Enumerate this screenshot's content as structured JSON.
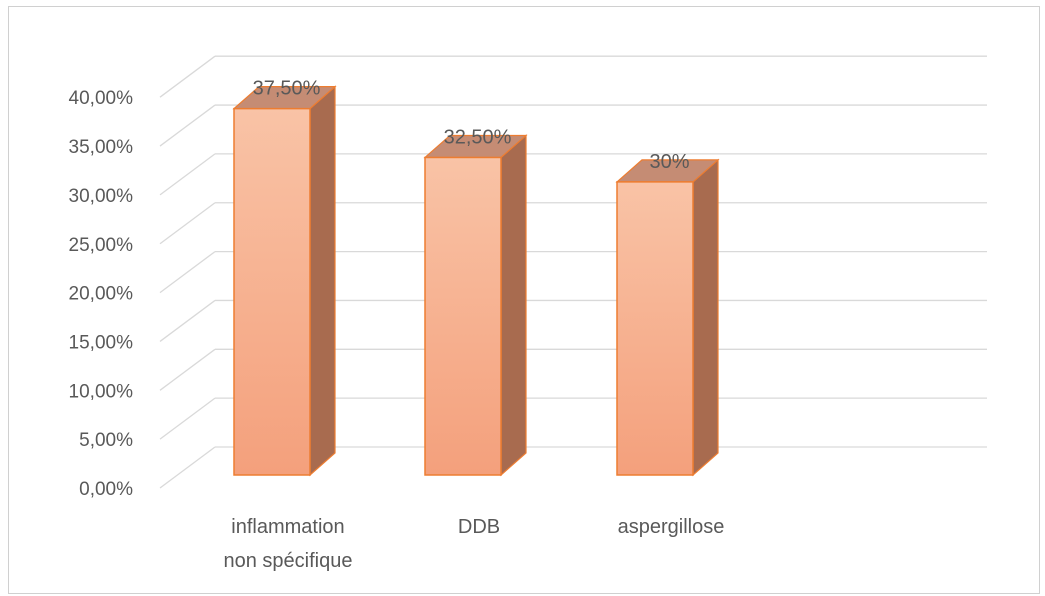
{
  "chart_data": {
    "type": "bar",
    "style": "3d-column",
    "categories": [
      [
        "inflammation",
        "non spécifique"
      ],
      [
        "DDB"
      ],
      [
        "aspergillose"
      ]
    ],
    "values": [
      37.5,
      32.5,
      30
    ],
    "data_labels": [
      "37,50%",
      "32,50%",
      "30%"
    ],
    "y_ticks": [
      "0,00%",
      "5,00%",
      "10,00%",
      "15,00%",
      "20,00%",
      "25,00%",
      "30,00%",
      "35,00%",
      "40,00%"
    ],
    "ylim": [
      0,
      40
    ],
    "grid": true,
    "legend": "none",
    "colors": {
      "bar_front_top": "#f9c3a6",
      "bar_front_bottom": "#f4a07c",
      "bar_side": "#a86b4f",
      "bar_top": "#c58c74",
      "bar_edge": "#ed7d31",
      "grid": "#d9d9d9",
      "text": "#595959"
    }
  }
}
